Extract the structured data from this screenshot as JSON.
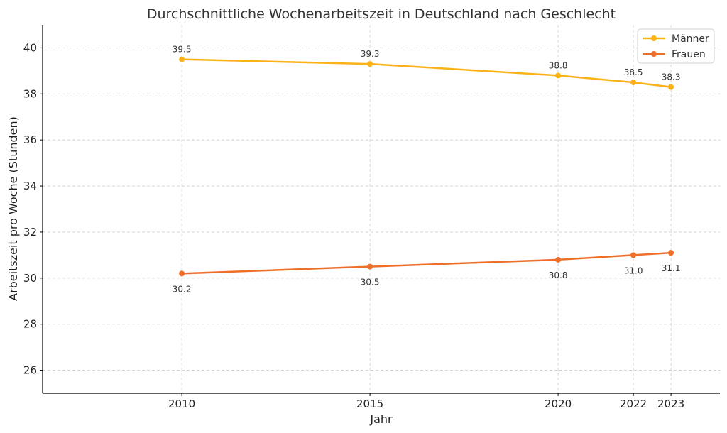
{
  "chart_data": {
    "type": "line",
    "title": "Durchschnittliche Wochenarbeitszeit in Deutschland nach Geschlecht",
    "xlabel": "Jahr",
    "ylabel": "Arbeitszeit pro Woche (Stunden)",
    "x": [
      2010,
      2015,
      2020,
      2022,
      2023
    ],
    "x_ticks": [
      "2010",
      "2015",
      "2020",
      "2022",
      "2023"
    ],
    "xlim": [
      2006.3,
      2024.3
    ],
    "ylim": [
      25,
      41
    ],
    "y_ticks": [
      26,
      28,
      30,
      32,
      34,
      36,
      38,
      40
    ],
    "grid": true,
    "legend_position": "top-right",
    "series": [
      {
        "name": "Männer",
        "color": "#FBB217",
        "values": [
          39.5,
          39.3,
          38.8,
          38.5,
          38.3
        ],
        "labels": [
          "39.5",
          "39.3",
          "38.8",
          "38.5",
          "38.3"
        ],
        "label_side": "above"
      },
      {
        "name": "Frauen",
        "color": "#EE6F2A",
        "values": [
          30.2,
          30.5,
          30.8,
          31.0,
          31.1
        ],
        "labels": [
          "30.2",
          "30.5",
          "30.8",
          "31.0",
          "31.1"
        ],
        "label_side": "below"
      }
    ]
  }
}
